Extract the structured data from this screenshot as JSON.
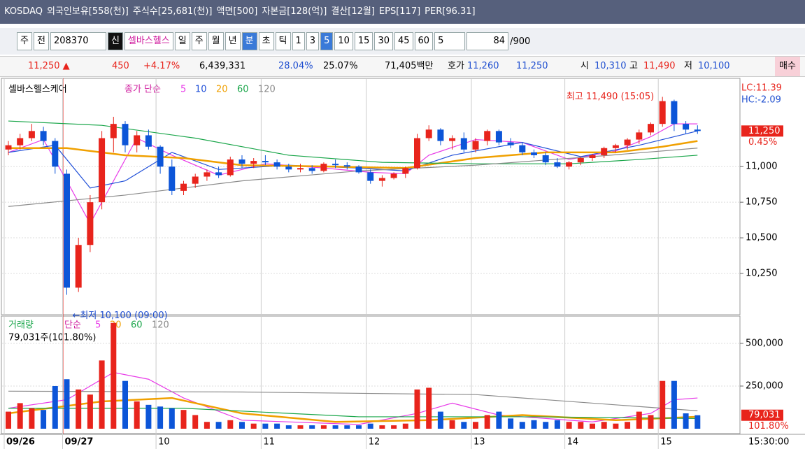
{
  "title_bar": {
    "market": "KOSDAQ",
    "foreign": "외국인보유[558(천)]",
    "shares": "주식수[25,681(천)]",
    "par": "액면[500]",
    "capital": "자본금[128(억)]",
    "settle": "결산[12월]",
    "eps": "EPS[117]",
    "per": "PER[96.31]"
  },
  "toolbar": [
    "주",
    "전",
    "208370",
    "신",
    "셀바스헬스",
    "일",
    "주",
    "월",
    "년",
    "분",
    "초",
    "틱",
    "1",
    "3",
    "5",
    "10",
    "15",
    "30",
    "45",
    "60",
    "5",
    "84",
    "/900"
  ],
  "quote": {
    "price": "11,250 ▲",
    "change": "450",
    "rate": "+4.17%",
    "volume": "6,439,331",
    "turnover": "28.04%",
    "ratio": "25.07%",
    "amount": "71,405백만",
    "bid_label": "호가",
    "ask": "11,260",
    "bid": "11,250",
    "open_label": "시",
    "open": "10,310",
    "high_label": "고",
    "high": "11,490",
    "low_label": "저",
    "low": "10,100",
    "buy": "매수"
  },
  "chart_data": [
    {
      "type": "candlestick",
      "name": "셀바스헬스케어",
      "ma_label": "종가 단순",
      "up_color": "#e8241c",
      "down_color": "#0c55d8",
      "ylim": [
        9960,
        11620
      ],
      "yticks": [
        {
          "value": 11000,
          "label": "11,000"
        },
        {
          "value": 10750,
          "label": "10,750"
        },
        {
          "value": 10500,
          "label": "10,500"
        },
        {
          "value": 10250,
          "label": "10,250"
        }
      ],
      "open": [
        11120,
        11150,
        11200,
        11250,
        11180,
        10950,
        10150,
        10450,
        10750,
        11200,
        11300,
        11150,
        11220,
        11140,
        11000,
        10830,
        10880,
        10930,
        10960,
        10940,
        11050,
        11020,
        11040,
        11030,
        11000,
        10980,
        10990,
        10970,
        11020,
        11010,
        11000,
        10960,
        10900,
        10920,
        10950,
        10990,
        11200,
        11260,
        11180,
        11200,
        11120,
        11180,
        11250,
        11170,
        11150,
        11100,
        11080,
        11030,
        11000,
        11030,
        11060,
        11080,
        11130,
        11150,
        11190,
        11240,
        11300,
        11460,
        11300,
        11260
      ],
      "high": [
        11180,
        11230,
        11300,
        11280,
        11200,
        10980,
        10500,
        10800,
        11250,
        11350,
        11320,
        11250,
        11260,
        11150,
        11050,
        10900,
        10950,
        10980,
        11000,
        11070,
        11080,
        11060,
        11080,
        11050,
        11020,
        11020,
        11010,
        11030,
        11050,
        11030,
        11010,
        10980,
        10940,
        10960,
        11000,
        11230,
        11290,
        11270,
        11220,
        11240,
        11200,
        11260,
        11260,
        11200,
        11170,
        11120,
        11100,
        11060,
        11040,
        11070,
        11090,
        11140,
        11160,
        11200,
        11260,
        11310,
        11490,
        11470,
        11320,
        11290
      ],
      "low": [
        11080,
        11120,
        11180,
        11150,
        10950,
        10100,
        10120,
        10400,
        10700,
        11100,
        11100,
        11100,
        11120,
        10950,
        10800,
        10800,
        10850,
        10900,
        10920,
        10930,
        10990,
        10990,
        11010,
        10980,
        10960,
        10960,
        10950,
        10960,
        10990,
        10980,
        10950,
        10880,
        10860,
        10910,
        10920,
        10980,
        11180,
        11150,
        11120,
        11100,
        11100,
        11150,
        11150,
        11130,
        11080,
        11060,
        11010,
        10990,
        10980,
        11010,
        11040,
        11060,
        11100,
        11120,
        11160,
        11220,
        11280,
        11250,
        11230,
        11230
      ],
      "close": [
        11150,
        11200,
        11250,
        11180,
        11000,
        10150,
        10450,
        10750,
        11200,
        11300,
        11150,
        11220,
        11140,
        11000,
        10830,
        10880,
        10930,
        10960,
        10940,
        11050,
        11020,
        11040,
        11030,
        11000,
        10980,
        10990,
        10970,
        11020,
        11010,
        11000,
        10960,
        10900,
        10920,
        10950,
        10990,
        11200,
        11260,
        11180,
        11200,
        11120,
        11180,
        11250,
        11170,
        11150,
        11100,
        11080,
        11030,
        11000,
        11030,
        11060,
        11080,
        11130,
        11150,
        11190,
        11240,
        11300,
        11460,
        11300,
        11260,
        11250
      ],
      "lines": [
        {
          "name": "5",
          "color": "#e83be8",
          "x": [
            0,
            3,
            5,
            7,
            9,
            11,
            14,
            18,
            22,
            27,
            31,
            34,
            36,
            40,
            44,
            48,
            52,
            55,
            57,
            59
          ],
          "values": [
            11100,
            11190,
            10900,
            10600,
            10900,
            11200,
            11080,
            10940,
            11020,
            10990,
            10960,
            10950,
            11080,
            11190,
            11170,
            11050,
            11110,
            11210,
            11300,
            11300
          ]
        },
        {
          "name": "10",
          "color": "#2150d8",
          "x": [
            0,
            4,
            7,
            10,
            14,
            18,
            24,
            30,
            34,
            38,
            44,
            49,
            54,
            59
          ],
          "values": [
            11100,
            11150,
            10850,
            10900,
            11100,
            10980,
            11010,
            10990,
            10970,
            11080,
            11170,
            11070,
            11150,
            11250
          ]
        },
        {
          "name": "20",
          "color": "#f0a000",
          "x": [
            0,
            5,
            10,
            15,
            20,
            28,
            34,
            40,
            46,
            52,
            56,
            59
          ],
          "values": [
            11130,
            11130,
            11080,
            11060,
            11010,
            11000,
            10990,
            11060,
            11100,
            11100,
            11140,
            11180
          ]
        },
        {
          "name": "60",
          "color": "#1aa64a",
          "x": [
            0,
            8,
            16,
            24,
            32,
            40,
            48,
            54,
            59
          ],
          "values": [
            11320,
            11290,
            11200,
            11080,
            11030,
            11020,
            11020,
            11050,
            11080
          ]
        },
        {
          "name": "120",
          "color": "#8a8a8a",
          "x": [
            0,
            10,
            20,
            30,
            40,
            50,
            59
          ],
          "values": [
            10720,
            10800,
            10900,
            10970,
            11010,
            11070,
            11130
          ]
        }
      ],
      "max_note": "최고 11,490 (15:05)",
      "min_note": "←최저 10,100 (09:00)",
      "lc": "LC:11.39",
      "hc": "HC:-2.09",
      "last": "11,250",
      "last_rate": "0.45%",
      "time_labels": [
        {
          "label": "09/26",
          "index": 0
        },
        {
          "label": "09/27",
          "index": 5
        },
        {
          "label": "10",
          "index": 13
        },
        {
          "label": "11",
          "index": 22
        },
        {
          "label": "12",
          "index": 31
        },
        {
          "label": "13",
          "index": 40
        },
        {
          "label": "14",
          "index": 48
        },
        {
          "label": "15",
          "index": 56
        }
      ],
      "last_time": "15:30:00"
    },
    {
      "type": "bar",
      "name": "거래량",
      "ma_label": "단순",
      "info": "79,031주(101.80%)",
      "last": "79,031",
      "last_rate": "101.80%",
      "ylim": [
        0,
        647500
      ],
      "yticks": [
        {
          "value": 250000,
          "label": "250,000"
        },
        {
          "value": 500000,
          "label": "500,000"
        }
      ],
      "values": [
        100000,
        150000,
        120000,
        110000,
        250000,
        290000,
        230000,
        200000,
        400000,
        620000,
        280000,
        160000,
        140000,
        130000,
        120000,
        110000,
        80000,
        40000,
        40000,
        50000,
        40000,
        30000,
        30000,
        30000,
        20000,
        20000,
        20000,
        20000,
        20000,
        20000,
        20000,
        30000,
        20000,
        20000,
        30000,
        230000,
        240000,
        100000,
        50000,
        40000,
        40000,
        80000,
        100000,
        60000,
        40000,
        50000,
        40000,
        50000,
        40000,
        40000,
        30000,
        40000,
        30000,
        40000,
        100000,
        80000,
        280000,
        280000,
        90000,
        79031
      ],
      "lines": [
        {
          "name": "5",
          "color": "#e83be8",
          "x": [
            0,
            5,
            9,
            12,
            15,
            20,
            30,
            35,
            38,
            42,
            50,
            55,
            57,
            59
          ],
          "values": [
            120000,
            170000,
            330000,
            290000,
            180000,
            50000,
            25000,
            90000,
            150000,
            80000,
            40000,
            90000,
            170000,
            180000
          ]
        },
        {
          "name": "20",
          "color": "#f0a000",
          "x": [
            0,
            8,
            14,
            20,
            28,
            36,
            44,
            52,
            59
          ],
          "values": [
            90000,
            160000,
            180000,
            90000,
            40000,
            50000,
            80000,
            50000,
            70000
          ]
        },
        {
          "name": "60",
          "color": "#1aa64a",
          "x": [
            0,
            15,
            30,
            45,
            59
          ],
          "values": [
            120000,
            120000,
            70000,
            70000,
            60000
          ]
        },
        {
          "name": "120",
          "color": "#8a8a8a",
          "x": [
            0,
            20,
            40,
            59
          ],
          "values": [
            220000,
            215000,
            200000,
            105000
          ]
        }
      ]
    }
  ]
}
